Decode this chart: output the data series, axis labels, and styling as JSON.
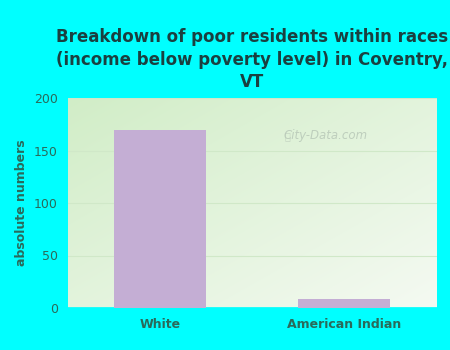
{
  "categories": [
    "White",
    "American Indian"
  ],
  "values": [
    170,
    9
  ],
  "bar_color": "#c4aed4",
  "title": "Breakdown of poor residents within races\n(income below poverty level) in Coventry,\nVT",
  "ylabel": "absolute numbers",
  "ylim": [
    0,
    200
  ],
  "yticks": [
    0,
    50,
    100,
    150,
    200
  ],
  "background_color": "#00ffff",
  "plot_bg_top_left": "#c8e8c0",
  "plot_bg_bottom_right": "#f0f8f0",
  "title_color": "#1a4040",
  "axis_color": "#2a6a5a",
  "tick_color": "#2a6a5a",
  "title_fontsize": 12,
  "label_fontsize": 9,
  "tick_fontsize": 9,
  "grid_color": "#d0e8c8",
  "watermark_text": "City-Data.com",
  "watermark_color": "#b8c8b8"
}
